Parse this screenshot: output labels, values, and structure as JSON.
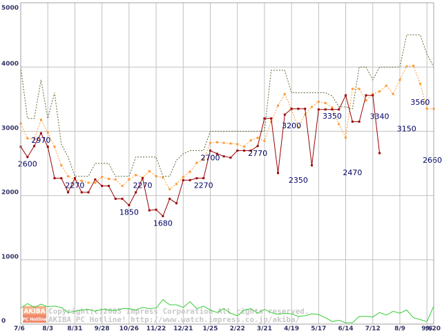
{
  "chart_data": {
    "type": "line",
    "title": "",
    "xlabel": "",
    "ylabel": "",
    "ylim": [
      0,
      5000
    ],
    "grid": true,
    "yticks": [
      0,
      1000,
      2000,
      3000,
      4000,
      5000
    ],
    "xticks": [
      {
        "x": 0,
        "label": "7/6"
      },
      {
        "x": 4,
        "label": "8/3"
      },
      {
        "x": 8,
        "label": "8/31"
      },
      {
        "x": 12,
        "label": "9/28"
      },
      {
        "x": 16,
        "label": "10/26"
      },
      {
        "x": 20,
        "label": "11/22"
      },
      {
        "x": 24,
        "label": "12/21"
      },
      {
        "x": 28,
        "label": "1/25"
      },
      {
        "x": 32,
        "label": "2/22"
      },
      {
        "x": 36,
        "label": "3/21"
      },
      {
        "x": 40,
        "label": "4/19"
      },
      {
        "x": 44,
        "label": "5/17"
      },
      {
        "x": 48,
        "label": "6/14"
      },
      {
        "x": 52,
        "label": "7/12"
      },
      {
        "x": 56,
        "label": "8/9"
      },
      {
        "x": 60,
        "label": "9/6"
      },
      {
        "x": 61,
        "label": "9/20"
      }
    ],
    "series": [
      {
        "id": "max",
        "style": "dotted-line",
        "color": "#556b2f",
        "points": [
          [
            0,
            4000
          ],
          [
            1,
            3200
          ],
          [
            2,
            3200
          ],
          [
            3,
            3800
          ],
          [
            4,
            3200
          ],
          [
            5,
            3600
          ],
          [
            6,
            2800
          ],
          [
            7,
            2600
          ],
          [
            8,
            2300
          ],
          [
            9,
            2300
          ],
          [
            10,
            2300
          ],
          [
            11,
            2500
          ],
          [
            12,
            2500
          ],
          [
            13,
            2500
          ],
          [
            14,
            2300
          ],
          [
            15,
            2300
          ],
          [
            16,
            2300
          ],
          [
            17,
            2600
          ],
          [
            18,
            2600
          ],
          [
            19,
            2600
          ],
          [
            20,
            2600
          ],
          [
            21,
            2300
          ],
          [
            22,
            2300
          ],
          [
            23,
            2550
          ],
          [
            24,
            2650
          ],
          [
            25,
            2700
          ],
          [
            26,
            2700
          ],
          [
            27,
            2700
          ],
          [
            28,
            3000
          ],
          [
            29,
            3000
          ],
          [
            30,
            3000
          ],
          [
            31,
            3000
          ],
          [
            32,
            3000
          ],
          [
            33,
            3000
          ],
          [
            34,
            3000
          ],
          [
            35,
            3000
          ],
          [
            36,
            3000
          ],
          [
            37,
            3950
          ],
          [
            38,
            3950
          ],
          [
            39,
            3950
          ],
          [
            40,
            3600
          ],
          [
            41,
            3600
          ],
          [
            42,
            3600
          ],
          [
            43,
            3600
          ],
          [
            44,
            3600
          ],
          [
            45,
            3600
          ],
          [
            46,
            3550
          ],
          [
            47,
            3380
          ],
          [
            48,
            3380
          ],
          [
            49,
            3350
          ],
          [
            50,
            4000
          ],
          [
            51,
            4000
          ],
          [
            52,
            3800
          ],
          [
            53,
            4000
          ],
          [
            54,
            4000
          ],
          [
            55,
            4000
          ],
          [
            56,
            4000
          ],
          [
            57,
            4500
          ],
          [
            58,
            4500
          ],
          [
            59,
            4500
          ],
          [
            60,
            4200
          ],
          [
            61,
            4000
          ]
        ]
      },
      {
        "id": "average",
        "style": "dotted-line-square-markers",
        "color": "#ff9933",
        "points": [
          [
            0,
            3120
          ],
          [
            1,
            2890
          ],
          [
            2,
            2880
          ],
          [
            3,
            3180
          ],
          [
            4,
            2980
          ],
          [
            5,
            2760
          ],
          [
            6,
            2470
          ],
          [
            7,
            2300
          ],
          [
            8,
            2250
          ],
          [
            9,
            2230
          ],
          [
            10,
            2200
          ],
          [
            11,
            2200
          ],
          [
            12,
            2290
          ],
          [
            13,
            2260
          ],
          [
            14,
            2250
          ],
          [
            15,
            2150
          ],
          [
            16,
            2250
          ],
          [
            17,
            2320
          ],
          [
            18,
            2280
          ],
          [
            19,
            2380
          ],
          [
            20,
            2300
          ],
          [
            21,
            2280
          ],
          [
            22,
            2100
          ],
          [
            23,
            2180
          ],
          [
            24,
            2290
          ],
          [
            25,
            2370
          ],
          [
            26,
            2510
          ],
          [
            27,
            2560
          ],
          [
            28,
            2820
          ],
          [
            29,
            2830
          ],
          [
            30,
            2820
          ],
          [
            31,
            2810
          ],
          [
            32,
            2800
          ],
          [
            33,
            2760
          ],
          [
            34,
            2860
          ],
          [
            35,
            2900
          ],
          [
            36,
            2850
          ],
          [
            37,
            3150
          ],
          [
            38,
            3400
          ],
          [
            39,
            3580
          ],
          [
            40,
            3340
          ],
          [
            41,
            3060
          ],
          [
            42,
            3260
          ],
          [
            43,
            3380
          ],
          [
            44,
            3460
          ],
          [
            45,
            3440
          ],
          [
            46,
            3370
          ],
          [
            47,
            3110
          ],
          [
            48,
            2900
          ],
          [
            49,
            3660
          ],
          [
            50,
            3660
          ],
          [
            51,
            3480
          ],
          [
            52,
            3580
          ],
          [
            53,
            3620
          ],
          [
            54,
            3710
          ],
          [
            55,
            3580
          ],
          [
            56,
            3800
          ],
          [
            57,
            4010
          ],
          [
            58,
            4020
          ],
          [
            59,
            3740
          ],
          [
            60,
            3350
          ],
          [
            61,
            3350
          ]
        ]
      },
      {
        "id": "min",
        "style": "line-square-markers",
        "color": "#990000",
        "points": [
          [
            0,
            2760
          ],
          [
            1,
            2600
          ],
          [
            2,
            2770
          ],
          [
            3,
            2970
          ],
          [
            4,
            2760
          ],
          [
            5,
            2270
          ],
          [
            6,
            2270
          ],
          [
            7,
            2050
          ],
          [
            8,
            2270
          ],
          [
            9,
            2050
          ],
          [
            10,
            2050
          ],
          [
            11,
            2250
          ],
          [
            12,
            2150
          ],
          [
            13,
            2150
          ],
          [
            14,
            1950
          ],
          [
            15,
            1950
          ],
          [
            16,
            1850
          ],
          [
            17,
            2050
          ],
          [
            18,
            2270
          ],
          [
            19,
            1770
          ],
          [
            20,
            1780
          ],
          [
            21,
            1680
          ],
          [
            22,
            1950
          ],
          [
            23,
            1880
          ],
          [
            24,
            2240
          ],
          [
            25,
            2240
          ],
          [
            26,
            2270
          ],
          [
            27,
            2270
          ],
          [
            28,
            2700
          ],
          [
            29,
            2650
          ],
          [
            30,
            2610
          ],
          [
            31,
            2590
          ],
          [
            32,
            2700
          ],
          [
            33,
            2700
          ],
          [
            34,
            2700
          ],
          [
            35,
            2770
          ],
          [
            36,
            3200
          ],
          [
            37,
            3200
          ],
          [
            38,
            2350
          ],
          [
            39,
            3260
          ],
          [
            40,
            3350
          ],
          [
            41,
            3350
          ],
          [
            42,
            3350
          ],
          [
            43,
            2470
          ],
          [
            44,
            3340
          ],
          [
            45,
            3340
          ],
          [
            46,
            3340
          ],
          [
            47,
            3340
          ],
          [
            48,
            3560
          ],
          [
            49,
            3150
          ],
          [
            50,
            3150
          ],
          [
            51,
            3560
          ],
          [
            52,
            3560
          ],
          [
            53,
            2660
          ]
        ]
      },
      {
        "id": "count",
        "style": "line",
        "color": "#33cc33",
        "points": [
          [
            0,
            250
          ],
          [
            1,
            320
          ],
          [
            2,
            260
          ],
          [
            3,
            310
          ],
          [
            4,
            270
          ],
          [
            5,
            280
          ],
          [
            6,
            260
          ],
          [
            7,
            180
          ],
          [
            8,
            200
          ],
          [
            9,
            220
          ],
          [
            10,
            230
          ],
          [
            11,
            200
          ],
          [
            12,
            230
          ],
          [
            13,
            220
          ],
          [
            14,
            210
          ],
          [
            15,
            240
          ],
          [
            16,
            240
          ],
          [
            17,
            220
          ],
          [
            18,
            260
          ],
          [
            19,
            240
          ],
          [
            20,
            250
          ],
          [
            21,
            380
          ],
          [
            22,
            300
          ],
          [
            23,
            300
          ],
          [
            24,
            260
          ],
          [
            25,
            350
          ],
          [
            26,
            240
          ],
          [
            27,
            280
          ],
          [
            28,
            220
          ],
          [
            29,
            180
          ],
          [
            30,
            240
          ],
          [
            31,
            170
          ],
          [
            32,
            130
          ],
          [
            33,
            220
          ],
          [
            34,
            240
          ],
          [
            35,
            170
          ],
          [
            36,
            230
          ],
          [
            37,
            180
          ],
          [
            38,
            150
          ],
          [
            39,
            170
          ],
          [
            40,
            160
          ],
          [
            41,
            120
          ],
          [
            42,
            130
          ],
          [
            43,
            160
          ],
          [
            44,
            150
          ],
          [
            45,
            100
          ],
          [
            46,
            40
          ],
          [
            47,
            60
          ],
          [
            48,
            20
          ],
          [
            49,
            20
          ],
          [
            50,
            120
          ],
          [
            51,
            120
          ],
          [
            52,
            110
          ],
          [
            53,
            180
          ],
          [
            54,
            140
          ],
          [
            55,
            200
          ],
          [
            56,
            170
          ],
          [
            57,
            220
          ],
          [
            58,
            100
          ],
          [
            59,
            70
          ],
          [
            60,
            40
          ],
          [
            61,
            280
          ]
        ]
      }
    ],
    "annotations": [
      {
        "x": 1,
        "y": 2600,
        "label": "2600"
      },
      {
        "x": 3,
        "y": 2970,
        "label": "2970"
      },
      {
        "x": 8,
        "y": 2270,
        "label": "2270"
      },
      {
        "x": 16,
        "y": 1850,
        "label": "1850"
      },
      {
        "x": 18,
        "y": 2270,
        "label": "2270"
      },
      {
        "x": 21,
        "y": 1680,
        "label": "1680"
      },
      {
        "x": 27,
        "y": 2270,
        "label": "2270"
      },
      {
        "x": 28,
        "y": 2700,
        "label": "2700"
      },
      {
        "x": 35,
        "y": 2770,
        "label": "2770"
      },
      {
        "x": 40,
        "y": 3200,
        "label": "3200"
      },
      {
        "x": 41,
        "y": 2350,
        "label": "2350"
      },
      {
        "x": 46,
        "y": 3350,
        "label": "3350"
      },
      {
        "x": 49,
        "y": 2470,
        "label": "2470"
      },
      {
        "x": 53,
        "y": 3340,
        "label": "3340"
      },
      {
        "x": 57,
        "y": 3150,
        "label": "3150"
      },
      {
        "x": 59,
        "y": 3560,
        "label": "3560"
      },
      {
        "x": 61,
        "y": 2660,
        "label": "2660"
      }
    ]
  },
  "watermark": {
    "line1": "Copyright(c)2003 Impress Corporation All rights reserved.",
    "line2": "AKIBA PC Hotline!  http://www.watch.impress.co.jp/akiba/",
    "logo_top": "AKIBA",
    "logo_bottom": "PC Hotline"
  }
}
